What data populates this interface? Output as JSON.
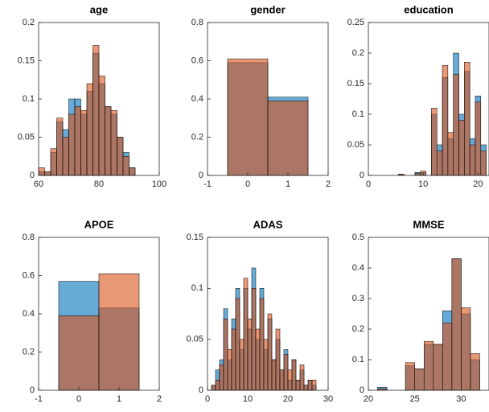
{
  "chart_data": [
    {
      "type": "histogram",
      "title": "age",
      "xlim": [
        60,
        100
      ],
      "xticks": [
        60,
        80,
        100
      ],
      "ylim": [
        0,
        0.2
      ],
      "yticks": [
        0,
        0.05,
        0.1,
        0.15,
        0.2
      ],
      "bins": [
        60,
        62,
        64,
        66,
        68,
        70,
        72,
        74,
        76,
        78,
        80,
        82,
        84,
        86,
        88,
        90,
        92
      ],
      "series": [
        {
          "color": "#0072bd",
          "values": [
            0.005,
            0.005,
            0.03,
            0.07,
            0.06,
            0.1,
            0.1,
            0.08,
            0.11,
            0.16,
            0.12,
            0.09,
            0.08,
            0.05,
            0.03,
            0.01
          ]
        },
        {
          "color": "#d95319",
          "values": [
            0.01,
            0.005,
            0.035,
            0.075,
            0.05,
            0.08,
            0.09,
            0.085,
            0.12,
            0.17,
            0.13,
            0.09,
            0.085,
            0.05,
            0.025,
            0.01
          ]
        }
      ]
    },
    {
      "type": "histogram",
      "title": "gender",
      "xlim": [
        -1,
        2
      ],
      "xticks": [
        -1,
        0,
        1,
        2
      ],
      "ylim": [
        0,
        0.8
      ],
      "yticks": [
        0,
        0.2,
        0.4,
        0.6,
        0.8
      ],
      "bins": [
        -0.5,
        0.5,
        1.5
      ],
      "series": [
        {
          "color": "#0072bd",
          "values": [
            0.59,
            0.41
          ]
        },
        {
          "color": "#d95319",
          "values": [
            0.61,
            0.39
          ]
        }
      ]
    },
    {
      "type": "histogram",
      "title": "education",
      "xlim": [
        0,
        22
      ],
      "xticks": [
        0,
        10,
        20
      ],
      "ylim": [
        0,
        0.25
      ],
      "yticks": [
        0,
        0.05,
        0.1,
        0.15,
        0.2,
        0.25
      ],
      "bins": [
        5.5,
        6.5,
        7.5,
        8.5,
        9.5,
        10.5,
        11.5,
        12.5,
        13.5,
        14.5,
        15.5,
        16.5,
        17.5,
        18.5,
        19.5,
        20.5,
        21.5
      ],
      "series": [
        {
          "color": "#0072bd",
          "values": [
            0.002,
            0,
            0,
            0.005,
            0.005,
            0,
            0.1,
            0.05,
            0.16,
            0.06,
            0.2,
            0.1,
            0.17,
            0.06,
            0.13,
            0.05
          ]
        },
        {
          "color": "#d95319",
          "values": [
            0.002,
            0,
            0,
            0.003,
            0.007,
            0,
            0.11,
            0.04,
            0.18,
            0.07,
            0.165,
            0.09,
            0.185,
            0.05,
            0.12,
            0.04
          ]
        }
      ]
    },
    {
      "type": "histogram",
      "title": "APOE",
      "xlim": [
        -1,
        2
      ],
      "xticks": [
        -1,
        0,
        1,
        2
      ],
      "ylim": [
        0,
        0.8
      ],
      "yticks": [
        0,
        0.2,
        0.4,
        0.6,
        0.8
      ],
      "bins": [
        -0.5,
        0.5,
        1.5
      ],
      "series": [
        {
          "color": "#0072bd",
          "values": [
            0.57,
            0.43
          ]
        },
        {
          "color": "#d95319",
          "values": [
            0.39,
            0.61
          ]
        }
      ]
    },
    {
      "type": "histogram",
      "title": "ADAS",
      "xlim": [
        0,
        30
      ],
      "xticks": [
        0,
        10,
        20,
        30
      ],
      "ylim": [
        0,
        0.15
      ],
      "yticks": [
        0,
        0.05,
        0.1,
        0.15
      ],
      "bins": [
        1,
        2,
        3,
        4,
        5,
        6,
        7,
        8,
        9,
        10,
        11,
        12,
        13,
        14,
        15,
        16,
        17,
        18,
        19,
        20,
        21,
        22,
        23,
        24,
        25,
        26,
        27
      ],
      "series": [
        {
          "color": "#0072bd",
          "values": [
            0.005,
            0.02,
            0.03,
            0.08,
            0.03,
            0.07,
            0.1,
            0.04,
            0.1,
            0.06,
            0.12,
            0.05,
            0.1,
            0.04,
            0.07,
            0.03,
            0.05,
            0.02,
            0.04,
            0.01,
            0.03,
            0.01,
            0.02,
            0.005,
            0.01,
            0.005
          ]
        },
        {
          "color": "#d95319",
          "values": [
            0.005,
            0.01,
            0.025,
            0.07,
            0.04,
            0.06,
            0.09,
            0.05,
            0.11,
            0.07,
            0.1,
            0.06,
            0.09,
            0.05,
            0.075,
            0.03,
            0.06,
            0.02,
            0.035,
            0.02,
            0.03,
            0.01,
            0.025,
            0.005,
            0.01,
            0.01
          ]
        }
      ]
    },
    {
      "type": "histogram",
      "title": "MMSE",
      "xlim": [
        20,
        33
      ],
      "xticks": [
        20,
        25,
        30
      ],
      "ylim": [
        0,
        0.5
      ],
      "yticks": [
        0,
        0.1,
        0.2,
        0.3,
        0.4,
        0.5
      ],
      "bins": [
        21,
        22,
        23,
        24,
        25,
        26,
        27,
        28,
        29,
        30,
        31,
        32
      ],
      "series": [
        {
          "color": "#0072bd",
          "values": [
            0.01,
            0,
            0,
            0.08,
            0.07,
            0.15,
            0.15,
            0.26,
            0.43,
            0.25,
            0.1
          ]
        },
        {
          "color": "#d95319",
          "values": [
            0.005,
            0,
            0,
            0.09,
            0.07,
            0.16,
            0.15,
            0.22,
            0.43,
            0.27,
            0.12
          ]
        }
      ]
    }
  ]
}
